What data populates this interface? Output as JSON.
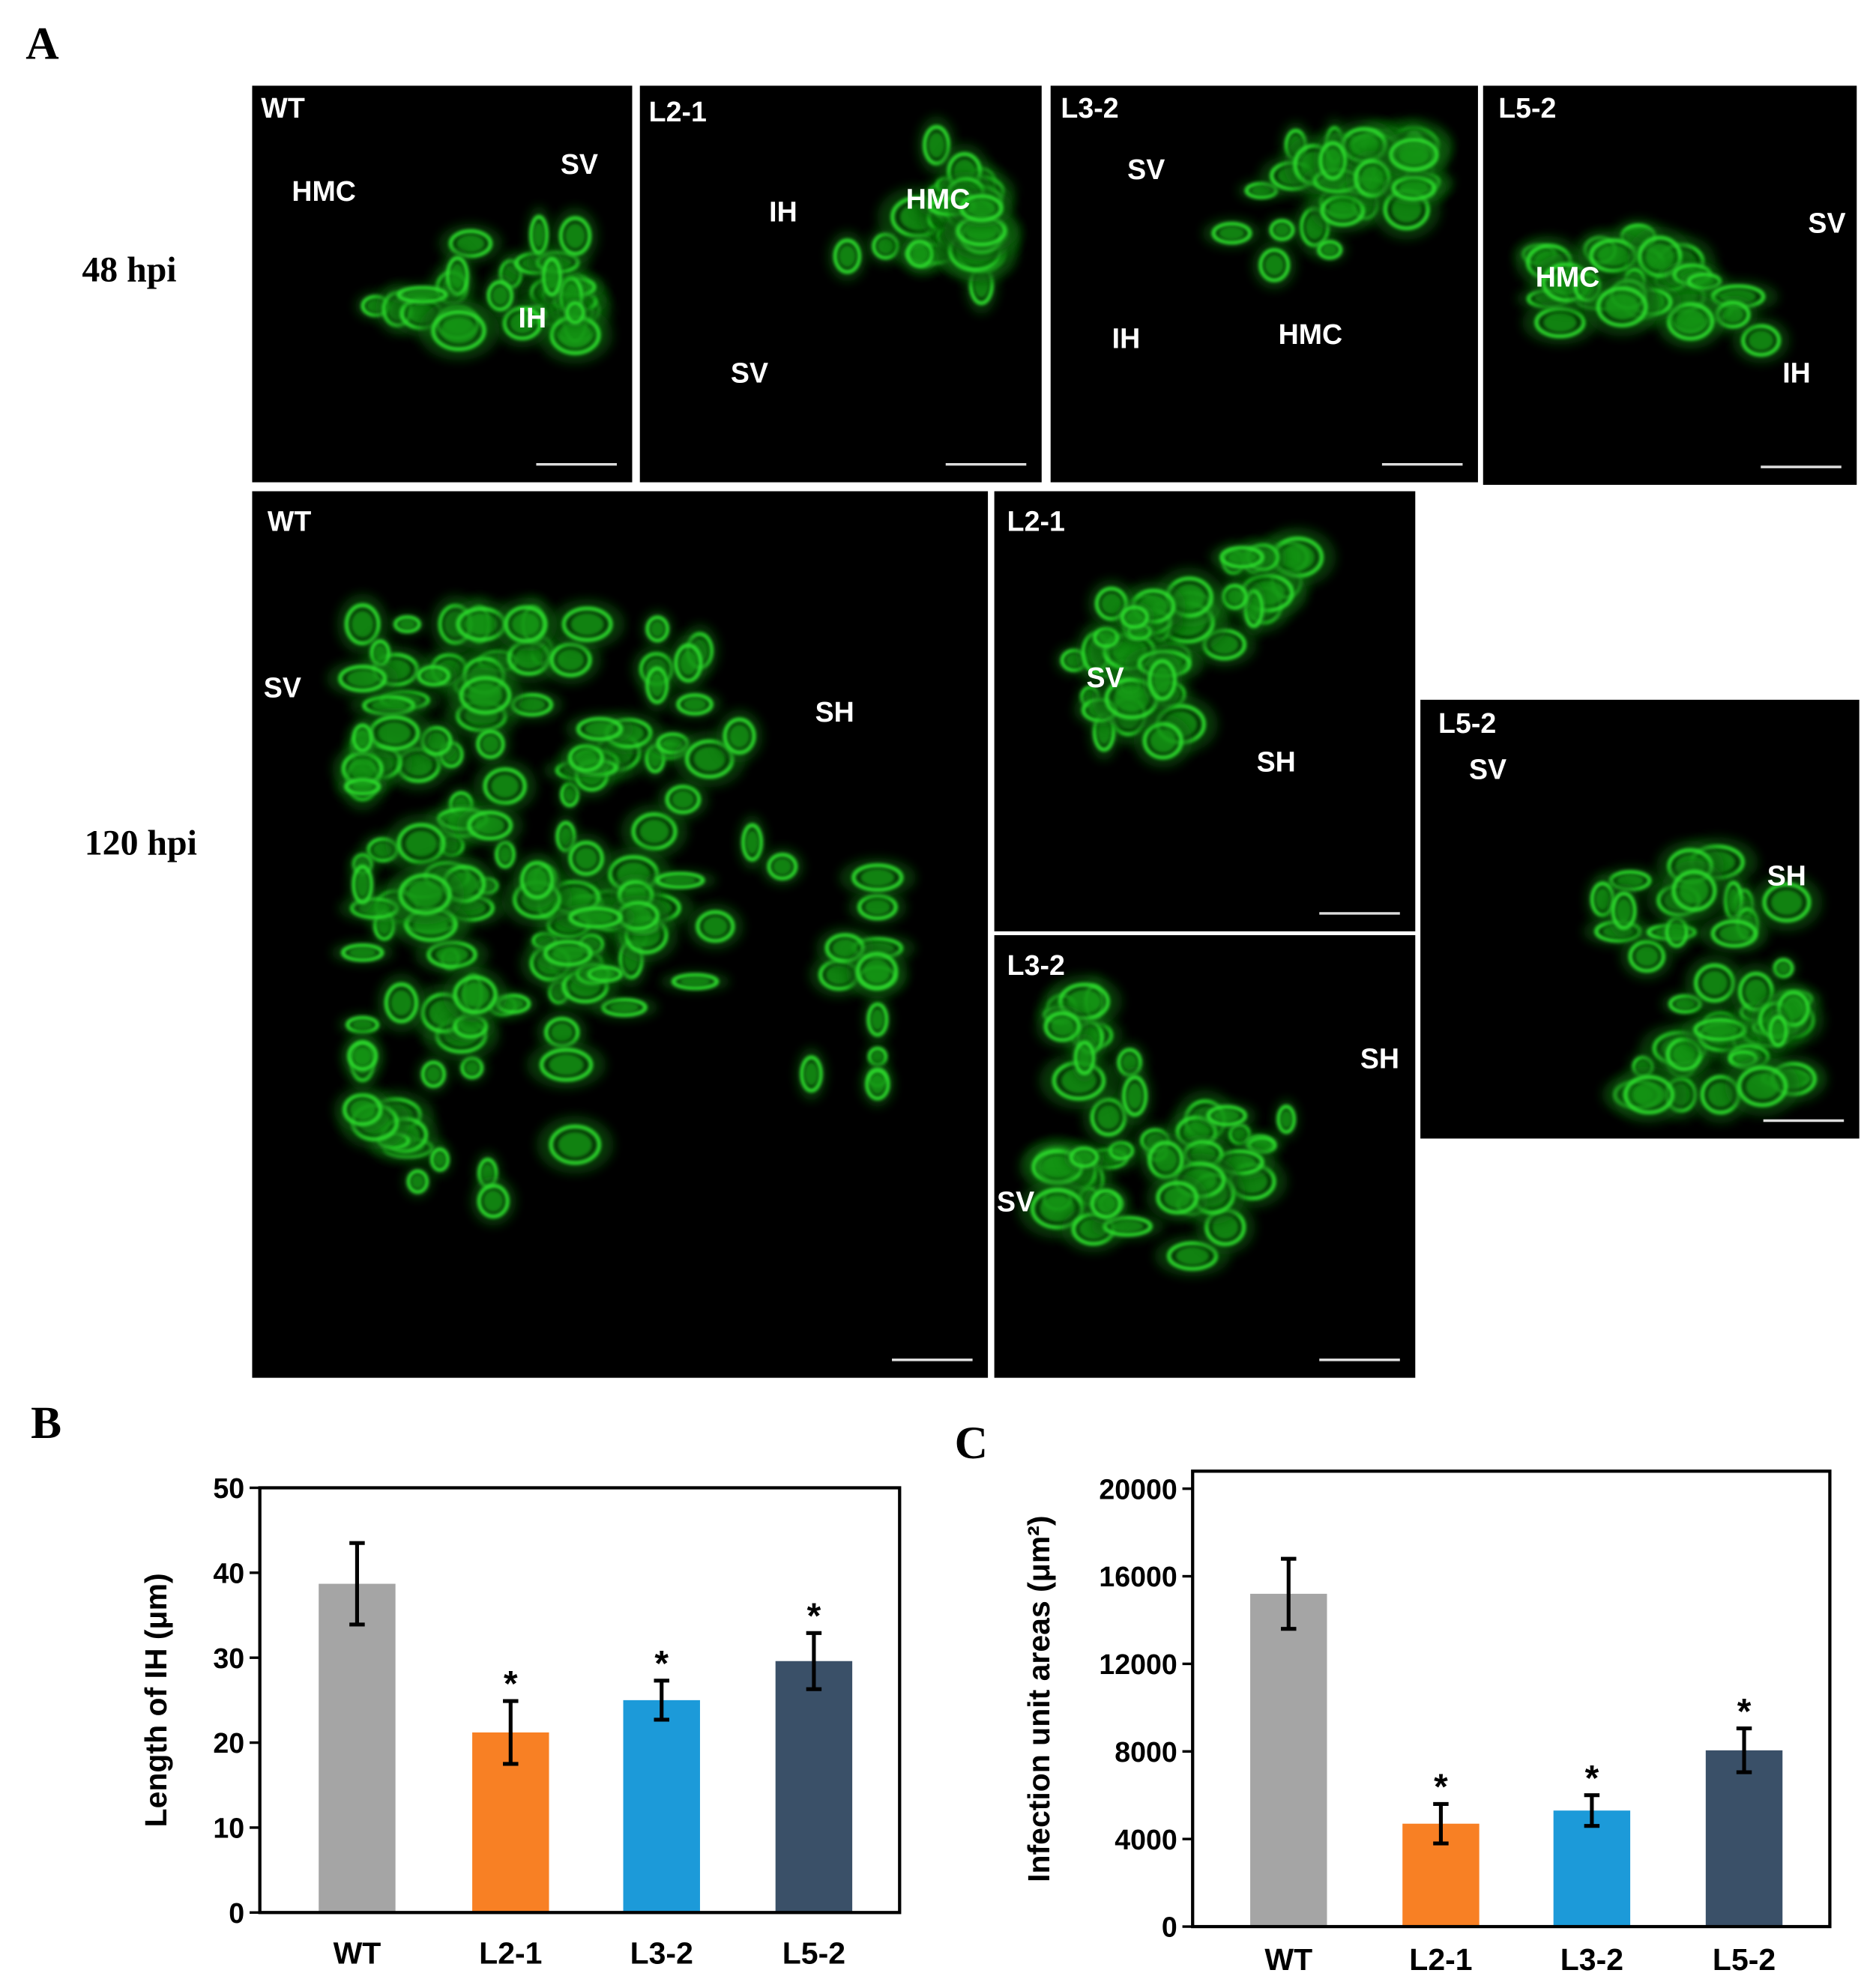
{
  "panel_labels": [
    "A",
    "B",
    "C"
  ],
  "micrographs": {
    "row_labels": [
      "48 hpi",
      "120 hpi"
    ],
    "panels": [
      {
        "title": "WT",
        "labels": [
          "HMC",
          "SV",
          "IH"
        ]
      },
      {
        "title": "L2-1",
        "labels": [
          "IH",
          "HMC",
          "SV"
        ]
      },
      {
        "title": "L3-2",
        "labels": [
          "SV",
          "IH",
          "HMC"
        ]
      },
      {
        "title": "L5-2",
        "labels": [
          "SV",
          "HMC",
          "IH"
        ]
      },
      {
        "title": "WT",
        "labels": [
          "SV",
          "SH"
        ]
      },
      {
        "title": "L2-1",
        "labels": [
          "SV",
          "SH"
        ]
      },
      {
        "title": "L3-2",
        "labels": [
          "SH",
          "SV"
        ]
      },
      {
        "title": "L5-2",
        "labels": [
          "SV",
          "SH"
        ]
      }
    ]
  },
  "chart_data": [
    {
      "type": "bar",
      "y_label": "Length of IH (μm)",
      "categories": [
        "WT",
        "L2-1",
        "L3-2",
        "L5-2"
      ],
      "values": [
        38.7,
        21.2,
        25,
        29.6
      ],
      "errors": [
        4.8,
        3.7,
        2.3,
        3.3
      ],
      "significance": [
        null,
        "*",
        "*",
        "*"
      ],
      "colors": [
        "#a5a5a5",
        "#f88024",
        "#1c9ad9",
        "#3a5068"
      ],
      "ylim": [
        0,
        50
      ],
      "yticks": [
        0,
        10,
        20,
        30,
        40,
        50
      ]
    },
    {
      "type": "bar",
      "y_label": "Infection unit areas (μm²)",
      "categories": [
        "WT",
        "L2-1",
        "L3-2",
        "L5-2"
      ],
      "values": [
        15200,
        4700,
        5300,
        8050
      ],
      "errors": [
        1600,
        900,
        700,
        1000
      ],
      "significance": [
        null,
        "*",
        "*",
        "*"
      ],
      "colors": [
        "#a5a5a5",
        "#f88024",
        "#1c9ad9",
        "#3a5068"
      ],
      "ylim": [
        0,
        20800
      ],
      "yticks": [
        0,
        4000,
        8000,
        12000,
        16000,
        20000
      ]
    }
  ]
}
